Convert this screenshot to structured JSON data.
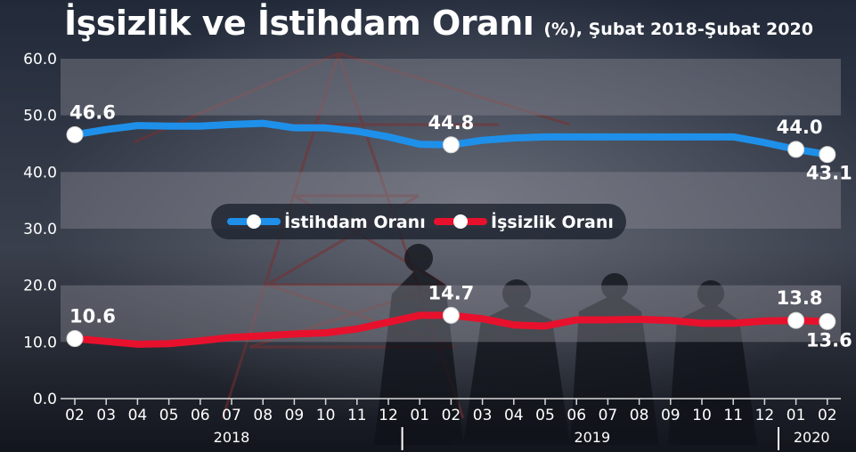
{
  "title": "İşsizlik ve İstihdam Oranı",
  "subtitle": "(%), Şubat 2018-Şubat 2020",
  "colors": {
    "background": "#1c2230",
    "band": "#8a8a94",
    "employment": "#1e90ea",
    "unemployment": "#e8112d",
    "text": "#ffffff"
  },
  "chart_data": {
    "type": "line",
    "ylim": [
      0,
      60
    ],
    "yticks": [
      "0.0",
      "10.0",
      "20.0",
      "30.0",
      "40.0",
      "50.0",
      "60.0"
    ],
    "x": [
      "02",
      "03",
      "04",
      "05",
      "06",
      "07",
      "08",
      "09",
      "10",
      "11",
      "12",
      "01",
      "02",
      "03",
      "04",
      "05",
      "06",
      "07",
      "08",
      "09",
      "10",
      "11",
      "12",
      "01",
      "02"
    ],
    "years": [
      {
        "label": "2018",
        "start": 0,
        "end": 10
      },
      {
        "label": "2019",
        "start": 11,
        "end": 22
      },
      {
        "label": "2020",
        "start": 23,
        "end": 24
      }
    ],
    "legend": "center",
    "series": [
      {
        "name": "İstihdam Oranı",
        "color": "#1e90ea",
        "values": [
          46.6,
          47.5,
          48.2,
          48.1,
          48.1,
          48.4,
          48.6,
          47.8,
          47.8,
          47.2,
          46.2,
          44.9,
          44.8,
          45.6,
          46.0,
          46.2,
          46.2,
          46.2,
          46.2,
          46.2,
          46.2,
          46.2,
          45.2,
          44.0,
          43.1
        ],
        "labels": [
          {
            "index": 0,
            "text": "46.6"
          },
          {
            "index": 12,
            "text": "44.8"
          },
          {
            "index": 23,
            "text": "44.0"
          },
          {
            "index": 24,
            "text": "43.1"
          }
        ]
      },
      {
        "name": "İşsizlik Oranı",
        "color": "#e8112d",
        "values": [
          10.6,
          10.1,
          9.6,
          9.7,
          10.2,
          10.8,
          11.1,
          11.4,
          11.6,
          12.3,
          13.5,
          14.7,
          14.7,
          14.1,
          13.0,
          12.8,
          13.9,
          13.9,
          14.0,
          13.8,
          13.3,
          13.3,
          13.7,
          13.8,
          13.6
        ],
        "labels": [
          {
            "index": 0,
            "text": "10.6"
          },
          {
            "index": 12,
            "text": "14.7"
          },
          {
            "index": 23,
            "text": "13.8"
          },
          {
            "index": 24,
            "text": "13.6"
          }
        ]
      }
    ]
  }
}
